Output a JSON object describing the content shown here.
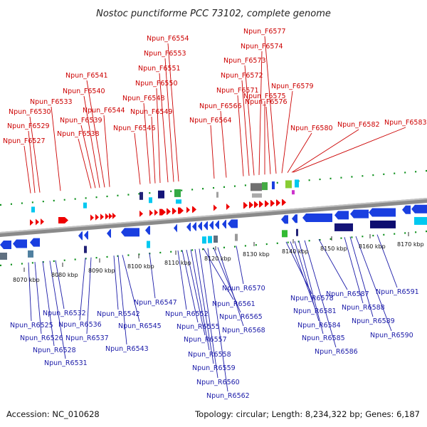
{
  "title": "Nostoc punctiforme PCC 73102, complete genome",
  "footer": {
    "accession": "Accession: NC_010628",
    "summary": "Topology: circular; Length: 8,234,322 bp; Genes: 6,187"
  },
  "colors": {
    "forward_label": "#cc0000",
    "reverse_label": "#1a1aa8",
    "forward_gene": "#ee0000",
    "reverse_gene": "#1a3fe0",
    "axis": "#888888",
    "tick": "#0b8f1a"
  },
  "ticks": [
    "8070 kbp",
    "8080 kbp",
    "8090 kbp",
    "8100 kbp",
    "8110 kbp",
    "8120 kbp",
    "8130 kbp",
    "8140 kbp",
    "8150 kbp",
    "8160 kbp",
    "8170 kbp"
  ],
  "forward_labels": [
    "Npun_F6527",
    "Npun_F6529",
    "Npun_F6530",
    "Npun_F6533",
    "Npun_F6538",
    "Npun_F6539",
    "Npun_F6540",
    "Npun_F6541",
    "Npun_F6544",
    "Npun_F6546",
    "Npun_F6548",
    "Npun_F6549",
    "Npun_F6550",
    "Npun_F6551",
    "Npun_F6553",
    "Npun_F6554",
    "Npun_F6564",
    "Npun_F6566",
    "Npun_F6571",
    "Npun_F6572",
    "Npun_F6573",
    "Npun_F6574",
    "Npun_F6575",
    "Npun_F6576",
    "Npun_F6577",
    "Npun_F6579",
    "Npun_F6580",
    "Npun_F6582",
    "Npun_F6583"
  ],
  "reverse_labels": [
    "Npun_R6525",
    "Npun_R6526",
    "Npun_R6528",
    "Npun_R6531",
    "Npun_R6532",
    "Npun_R6536",
    "Npun_R6537",
    "Npun_R6542",
    "Npun_R6543",
    "Npun_R6545",
    "Npun_R6547",
    "Npun_R6552",
    "Npun_R6555",
    "Npun_R6557",
    "Npun_R6558",
    "Npun_R6559",
    "Npun_R6560",
    "Npun_R6561",
    "Npun_R6562",
    "Npun_R6565",
    "Npun_R6568",
    "Npun_R6570",
    "Npun_R6578",
    "Npun_R6581",
    "Npun_R6584",
    "Npun_R6585",
    "Npun_R6586",
    "Npun_R6587",
    "Npun_R6588",
    "Npun_R6589",
    "Npun_R6590",
    "Npun_R6591"
  ]
}
